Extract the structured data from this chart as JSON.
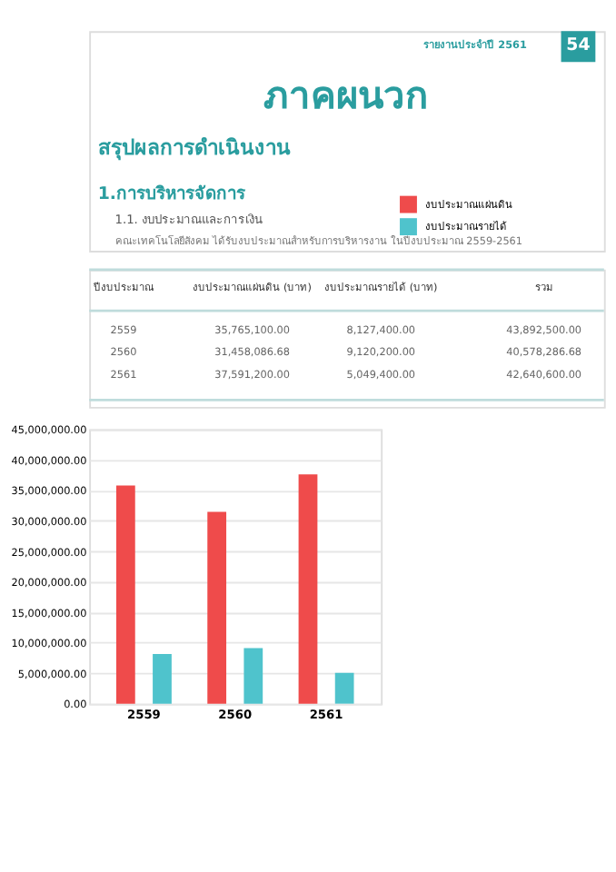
{
  "chart_data": {
    "type": "bar",
    "title": "ภาคผนวก",
    "subtitle": "สรุปผลการดำเนินงาน",
    "annotations": [
      "รายงานประจำปี 2561",
      "54",
      "1.การบริหารจัดการ",
      "1.1. งบประมาณและการเงิน",
      "คณะเทคโนโลยีสังคม ได้รับงบประมาณสำหรับการบริหารงาน ในปีงบประมาณ 2559-2561",
      "ปีงบประมาณ",
      "งบประมาณแผ่นดิน (บาท)",
      "งบประมาณรายได้ (บาท)",
      "รวม",
      "2559",
      "35,765,100.00",
      "8,127,400.00",
      "43,892,500.00",
      "2560",
      "31,458,086.68",
      "9,120,200.00",
      "40,578,286.68",
      "2561",
      "37,591,200.00",
      "5,049,400.00",
      "42,640,600.00"
    ],
    "categories": [
      "2559",
      "2560",
      "2561"
    ],
    "series": [
      {
        "name": "งบประมาณแผ่นดิน",
        "color": "#ef4b4b",
        "values": [
          35765100.0,
          31458086.68,
          37591200.0
        ]
      },
      {
        "name": "งบประมาณรายได้",
        "color": "#4fc3cc",
        "values": [
          8127400.0,
          9120200.0,
          5049400.0
        ]
      }
    ],
    "ylim": [
      0,
      45000000
    ],
    "yticks": [
      {
        "value": 0,
        "label": "0.00"
      },
      {
        "value": 5000000,
        "label": "5,000,000.00"
      },
      {
        "value": 10000000,
        "label": "10,000,000.00"
      },
      {
        "value": 15000000,
        "label": "15,000,000.00"
      },
      {
        "value": 20000000,
        "label": "20,000,000.00"
      },
      {
        "value": 25000000,
        "label": "25,000,000.00"
      },
      {
        "value": 30000000,
        "label": "30,000,000.00"
      },
      {
        "value": 35000000,
        "label": "35,000,000.00"
      },
      {
        "value": 40000000,
        "label": "40,000,000.00"
      },
      {
        "value": 45000000,
        "label": "45,000,000.00"
      }
    ],
    "grid": "y",
    "legend": "right"
  }
}
